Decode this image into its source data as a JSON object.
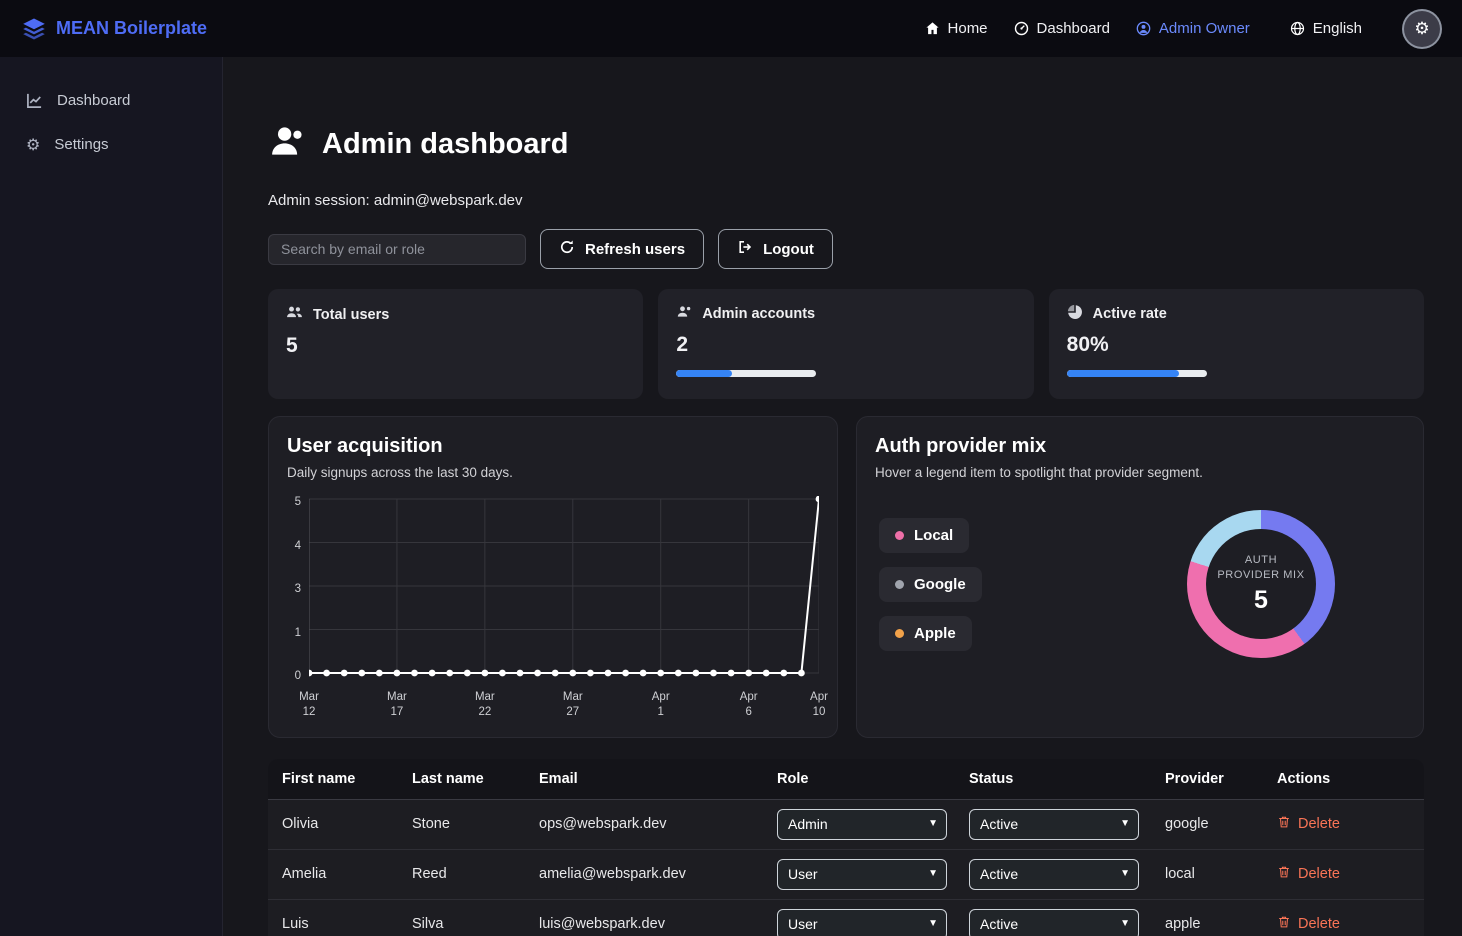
{
  "navbar": {
    "brand": "MEAN Boilerplate",
    "links": [
      {
        "label": "Home"
      },
      {
        "label": "Dashboard"
      },
      {
        "label": "Admin Owner"
      }
    ],
    "language": "English",
    "accent_color": "#4e6cf5"
  },
  "sidebar": {
    "items": [
      {
        "label": "Dashboard"
      },
      {
        "label": "Settings"
      }
    ]
  },
  "header": {
    "title": "Admin dashboard",
    "session": "Admin session: admin@webspark.dev"
  },
  "toolbar": {
    "search_placeholder": "Search by email or role",
    "refresh_label": "Refresh users",
    "logout_label": "Logout"
  },
  "stats": [
    {
      "label": "Total users",
      "value": "5"
    },
    {
      "label": "Admin accounts",
      "value": "2",
      "progress": 40
    },
    {
      "label": "Active rate",
      "value": "80%",
      "progress": 80
    }
  ],
  "chart_data": [
    {
      "type": "line",
      "title": "User acquisition",
      "subtitle": "Daily signups across the last 30 days.",
      "x_tick_labels": [
        "Mar 12",
        "Mar 17",
        "Mar 22",
        "Mar 27",
        "Apr 1",
        "Apr 6",
        "Apr 10"
      ],
      "x_tick_indices": [
        0,
        5,
        10,
        15,
        20,
        25,
        29
      ],
      "values": [
        0,
        0,
        0,
        0,
        0,
        0,
        0,
        0,
        0,
        0,
        0,
        0,
        0,
        0,
        0,
        0,
        0,
        0,
        0,
        0,
        0,
        0,
        0,
        0,
        0,
        0,
        0,
        0,
        0,
        5
      ],
      "ylim": [
        0,
        5
      ],
      "y_ticks": [
        "5",
        "4",
        "3",
        "1",
        "0"
      ],
      "line_color": "#ffffff",
      "grid": true
    },
    {
      "type": "donut",
      "title": "Auth provider mix",
      "subtitle": "Hover a legend item to spotlight that provider segment.",
      "center_label": "AUTH PROVIDER MIX",
      "center_value": "5",
      "legend": [
        {
          "label": "Local",
          "color": "#ee6fa8"
        },
        {
          "label": "Google",
          "color": "#a0a4ad"
        },
        {
          "label": "Apple",
          "color": "#f2a24a"
        }
      ],
      "segments": [
        {
          "name": "Google",
          "value": 2,
          "color": "#757af0"
        },
        {
          "name": "Local",
          "value": 2,
          "color": "#ef6fae"
        },
        {
          "name": "Apple",
          "value": 1,
          "color": "#a8d8f0"
        }
      ]
    }
  ],
  "table": {
    "headers": [
      "First name",
      "Last name",
      "Email",
      "Role",
      "Status",
      "Provider",
      "Actions"
    ],
    "rows": [
      {
        "first": "Olivia",
        "last": "Stone",
        "email": "ops@webspark.dev",
        "role": "Admin",
        "status": "Active",
        "provider": "google",
        "action": "Delete"
      },
      {
        "first": "Amelia",
        "last": "Reed",
        "email": "amelia@webspark.dev",
        "role": "User",
        "status": "Active",
        "provider": "local",
        "action": "Delete"
      },
      {
        "first": "Luis",
        "last": "Silva",
        "email": "luis@webspark.dev",
        "role": "User",
        "status": "Active",
        "provider": "apple",
        "action": "Delete"
      }
    ]
  }
}
